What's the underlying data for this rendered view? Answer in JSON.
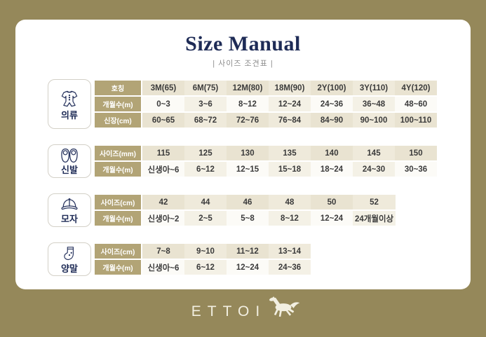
{
  "header": {
    "title": "Size Manual",
    "subtitle": "| 사이즈 조견표 |"
  },
  "sections": [
    {
      "id": "clothing",
      "label": "의류",
      "icon": "onesie-icon",
      "rows": [
        {
          "header": "호칭",
          "cells": [
            "3M(65)",
            "6M(75)",
            "12M(80)",
            "18M(90)",
            "2Y(100)",
            "3Y(110)",
            "4Y(120)"
          ]
        },
        {
          "header": "개월수(m)",
          "cells": [
            "0~3",
            "3~6",
            "8~12",
            "12~24",
            "24~36",
            "36~48",
            "48~60"
          ]
        },
        {
          "header": "신장(cm)",
          "cells": [
            "60~65",
            "68~72",
            "72~76",
            "76~84",
            "84~90",
            "90~100",
            "100~110"
          ]
        }
      ]
    },
    {
      "id": "shoes",
      "label": "신발",
      "icon": "shoes-icon",
      "rows": [
        {
          "header": "사이즈(mm)",
          "cells": [
            "115",
            "125",
            "130",
            "135",
            "140",
            "145",
            "150"
          ]
        },
        {
          "header": "개월수(m)",
          "cells": [
            "신생아~6",
            "6~12",
            "12~15",
            "15~18",
            "18~24",
            "24~30",
            "30~36"
          ]
        }
      ]
    },
    {
      "id": "hat",
      "label": "모자",
      "icon": "cap-icon",
      "rows": [
        {
          "header": "사이즈(cm)",
          "cells": [
            "42",
            "44",
            "46",
            "48",
            "50",
            "52"
          ]
        },
        {
          "header": "개월수(m)",
          "cells": [
            "신생아~2",
            "2~5",
            "5~8",
            "8~12",
            "12~24",
            "24개월이상"
          ]
        }
      ]
    },
    {
      "id": "socks",
      "label": "양말",
      "icon": "sock-icon",
      "rows": [
        {
          "header": "사이즈(cm)",
          "cells": [
            "7~8",
            "9~10",
            "11~12",
            "13~14"
          ]
        },
        {
          "header": "개월수(m)",
          "cells": [
            "신생아~6",
            "6~12",
            "12~24",
            "24~36"
          ]
        }
      ]
    }
  ],
  "footer": {
    "brand": "ETTOI",
    "logo_icon": "horse-icon"
  },
  "colors": {
    "background_olive": "#95885a",
    "card_white": "#ffffff",
    "table_header_olive": "#b2a476",
    "cell_beige": "#e9e3d1",
    "cell_beige_light": "#efeadb",
    "cell_white": "#fcfbf7",
    "cell_white_tint": "#f4f1e6",
    "title_navy": "#1e2b56",
    "logo_cream": "#f2efe1"
  }
}
